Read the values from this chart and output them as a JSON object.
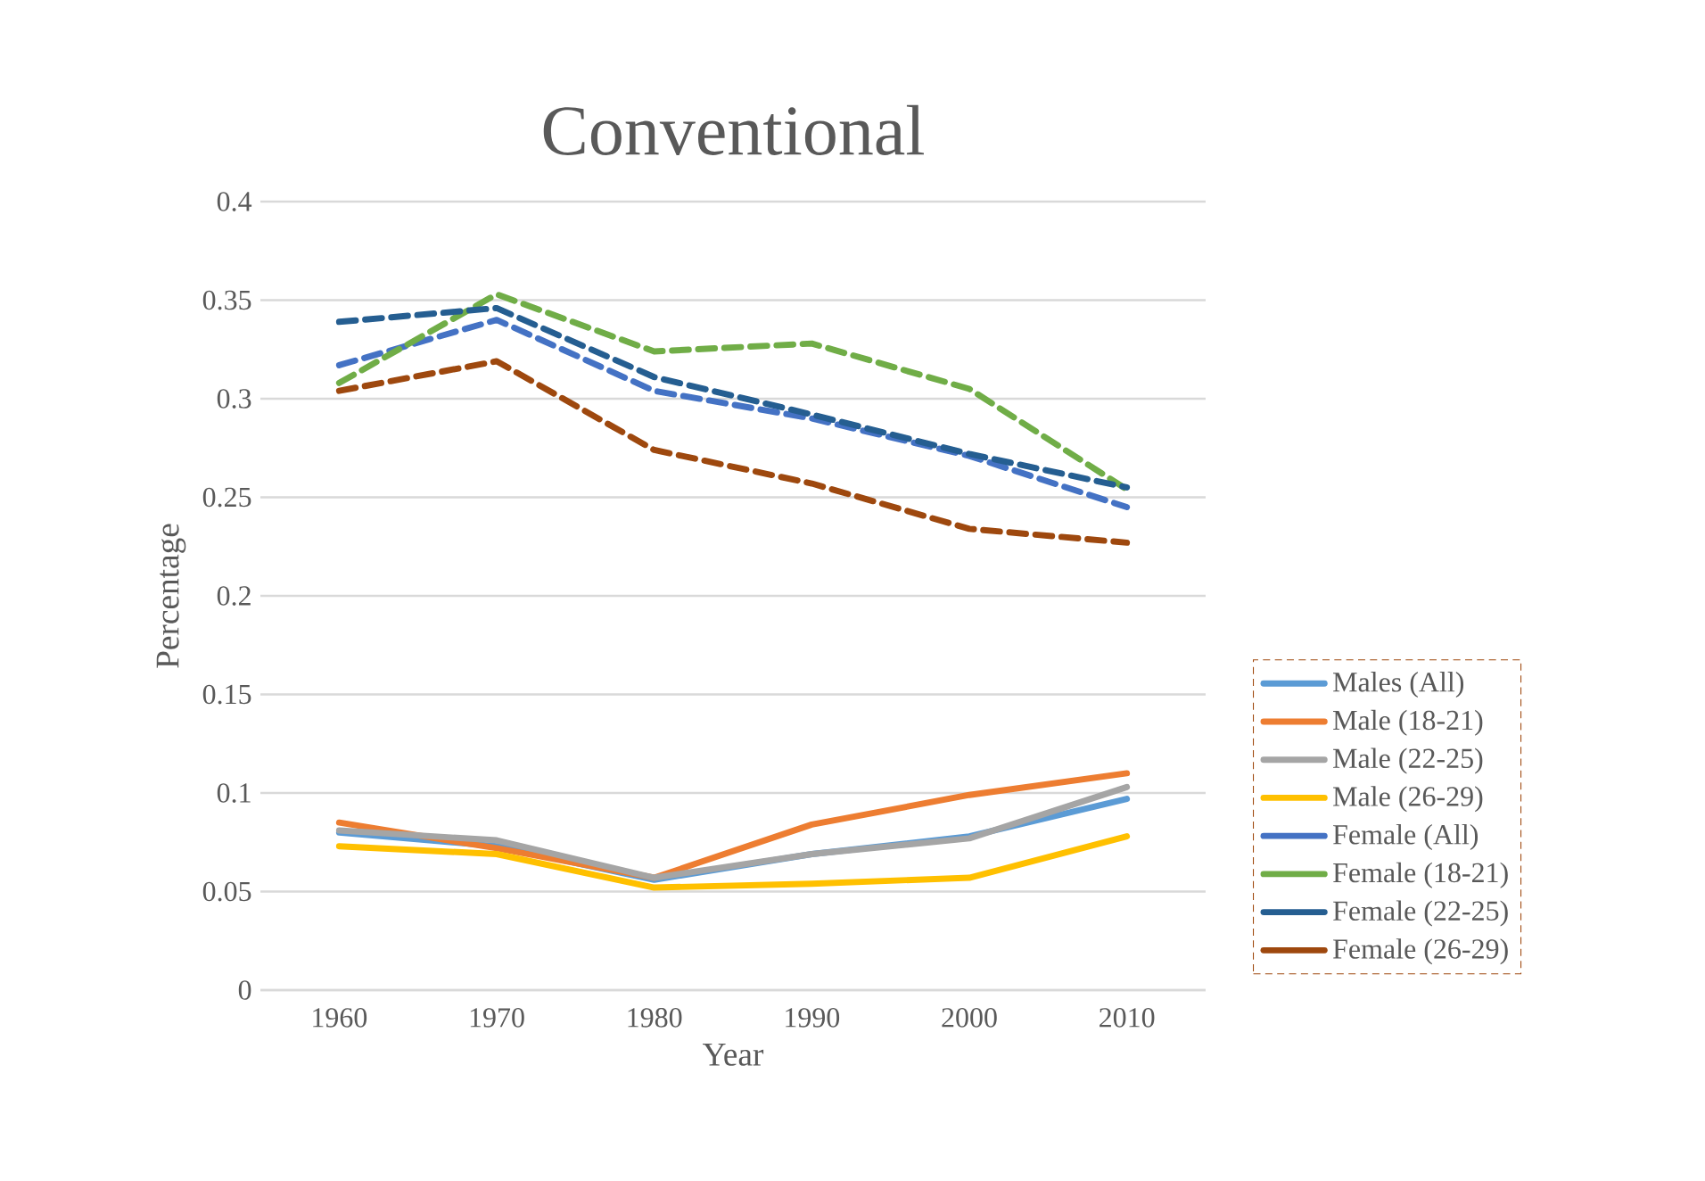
{
  "chart_data": {
    "type": "line",
    "title": "Conventional",
    "xlabel": "Year",
    "ylabel": "Percentage",
    "x": [
      1960,
      1970,
      1980,
      1990,
      2000,
      2010
    ],
    "xlim": [
      1955,
      2015
    ],
    "xticks": [
      1960,
      1970,
      1980,
      1990,
      2000,
      2010
    ],
    "ylim": [
      0,
      0.4
    ],
    "yticks": [
      0,
      0.05,
      0.1,
      0.15,
      0.2,
      0.25,
      0.3,
      0.35,
      0.4
    ],
    "grid": "y",
    "legend": "right",
    "marker": "none",
    "series": [
      {
        "name": "Males (All)",
        "color": "#5b9bd5",
        "line_style": "solid",
        "values": [
          0.08,
          0.073,
          0.056,
          0.069,
          0.078,
          0.097
        ]
      },
      {
        "name": "Male (18-21)",
        "color": "#ed7d31",
        "line_style": "solid",
        "values": [
          0.085,
          0.072,
          0.057,
          0.084,
          0.099,
          0.11
        ]
      },
      {
        "name": "Male (22-25)",
        "color": "#a5a5a5",
        "line_style": "solid",
        "values": [
          0.081,
          0.076,
          0.057,
          0.069,
          0.077,
          0.103
        ]
      },
      {
        "name": "Male (26-29)",
        "color": "#ffc000",
        "line_style": "solid",
        "values": [
          0.073,
          0.069,
          0.052,
          0.054,
          0.057,
          0.078
        ]
      },
      {
        "name": "Female (All)",
        "color": "#4472c4",
        "line_style": "dashed",
        "values": [
          0.317,
          0.34,
          0.304,
          0.29,
          0.271,
          0.245
        ]
      },
      {
        "name": "Female (18-21)",
        "color": "#70ad47",
        "line_style": "dashed",
        "values": [
          0.308,
          0.353,
          0.324,
          0.328,
          0.305,
          0.254
        ]
      },
      {
        "name": "Female (22-25)",
        "color": "#255e91",
        "line_style": "dashed",
        "values": [
          0.339,
          0.346,
          0.311,
          0.292,
          0.272,
          0.255
        ]
      },
      {
        "name": "Female (26-29)",
        "color": "#9e480e",
        "line_style": "dashed",
        "values": [
          0.304,
          0.319,
          0.274,
          0.257,
          0.234,
          0.227
        ]
      }
    ]
  }
}
